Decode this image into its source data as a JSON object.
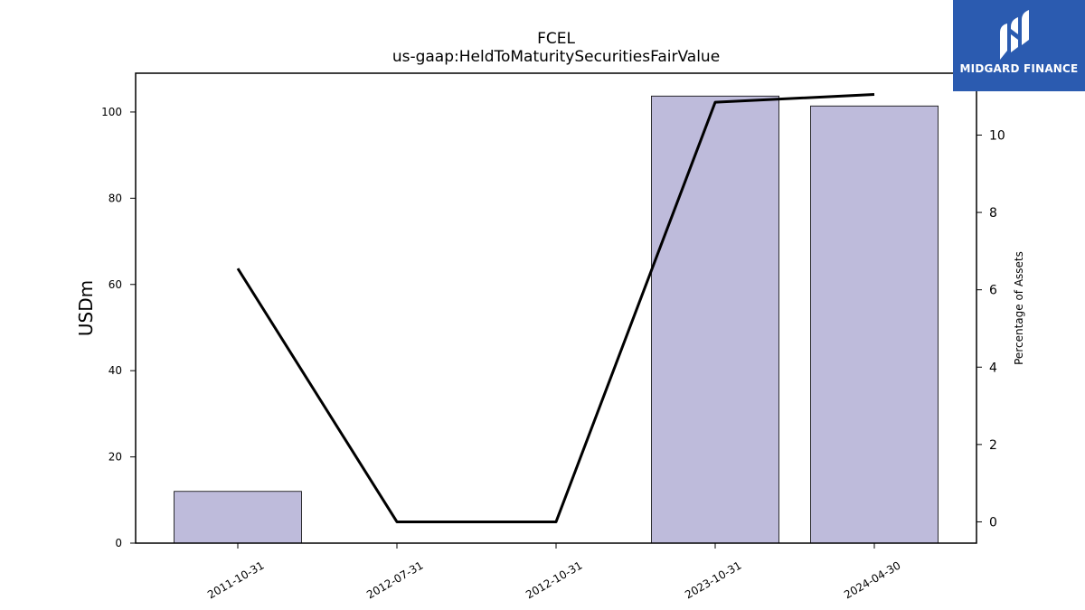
{
  "brand": {
    "name": "MIDGARD FINANCE",
    "bg_color": "#2b5bb0"
  },
  "chart_data": {
    "type": "bar",
    "title": "FCEL",
    "subtitle": "us-gaap:HeldToMaturitySecuritiesFairValue",
    "ylabel": "USDm",
    "y2label": "Percentage of Assets",
    "categories": [
      "2011-10-31",
      "2012-07-31",
      "2012-10-31",
      "2023-10-31",
      "2024-04-30"
    ],
    "series": [
      {
        "type": "bar",
        "axis": "left",
        "color": "#bebbdb",
        "values": [
          12,
          0,
          0,
          103.7,
          101.4
        ]
      },
      {
        "type": "line",
        "axis": "right",
        "color": "#000000",
        "values": [
          6.55,
          0,
          0,
          10.85,
          11.05
        ]
      }
    ],
    "ylim": [
      0,
      109
    ],
    "yticks": [
      0,
      20,
      40,
      60,
      80,
      100
    ],
    "y2lim": [
      -0.55,
      11.6
    ],
    "y2ticks": [
      0,
      2,
      4,
      6,
      8,
      10
    ],
    "grid": false
  }
}
